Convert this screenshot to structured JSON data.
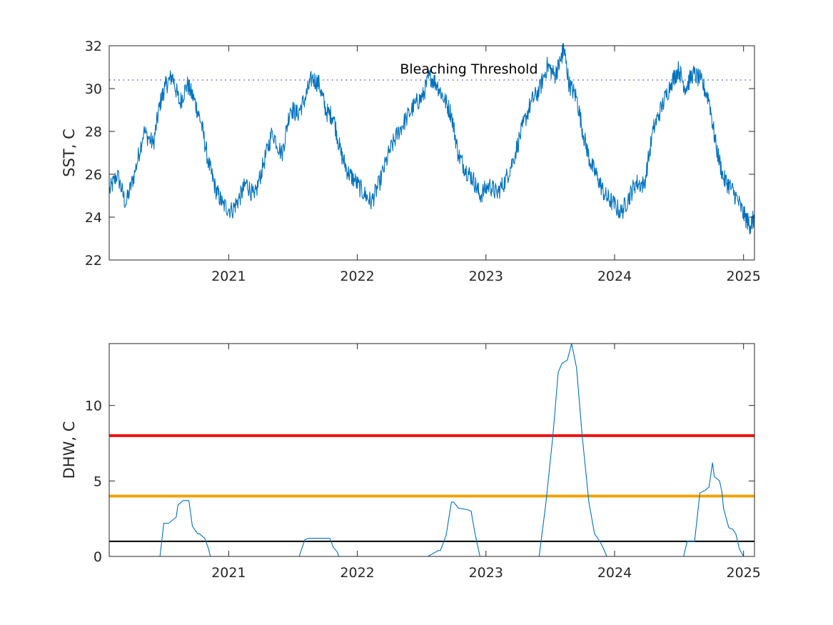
{
  "chart_data": [
    {
      "type": "line",
      "ylabel": "SST, C",
      "xlim": [
        "2020-01-28",
        "2025-02-01"
      ],
      "ylim": [
        22,
        32
      ],
      "yticks": [
        22,
        24,
        26,
        28,
        30,
        32
      ],
      "xticks": [
        "2021",
        "2022",
        "2023",
        "2024",
        "2025"
      ],
      "series": [
        {
          "color": "#0072bd",
          "x": [
            "2020-01-28",
            "2020-02-20",
            "2020-03-15",
            "2020-04-10",
            "2020-05-05",
            "2020-06-01",
            "2020-06-20",
            "2020-07-05",
            "2020-07-25",
            "2020-08-15",
            "2020-09-05",
            "2020-09-25",
            "2020-10-15",
            "2020-11-05",
            "2020-11-25",
            "2020-12-15",
            "2021-01-10",
            "2021-02-01",
            "2021-02-20",
            "2021-03-15",
            "2021-04-10",
            "2021-05-05",
            "2021-06-01",
            "2021-06-25",
            "2021-07-15",
            "2021-08-05",
            "2021-08-25",
            "2021-09-15",
            "2021-10-05",
            "2021-10-25",
            "2021-11-15",
            "2021-12-05",
            "2021-12-25",
            "2022-01-20",
            "2022-02-10",
            "2022-03-05",
            "2022-04-01",
            "2022-04-25",
            "2022-05-20",
            "2022-06-15",
            "2022-07-05",
            "2022-07-25",
            "2022-08-15",
            "2022-09-05",
            "2022-09-25",
            "2022-10-15",
            "2022-11-05",
            "2022-11-25",
            "2022-12-15",
            "2023-01-10",
            "2023-02-01",
            "2023-02-25",
            "2023-03-20",
            "2023-04-15",
            "2023-05-10",
            "2023-06-01",
            "2023-06-25",
            "2023-07-15",
            "2023-08-01",
            "2023-08-10",
            "2023-08-25",
            "2023-09-15",
            "2023-10-05",
            "2023-10-25",
            "2023-11-15",
            "2023-12-05",
            "2023-12-25",
            "2024-01-20",
            "2024-02-10",
            "2024-03-01",
            "2024-03-25",
            "2024-04-20",
            "2024-05-15",
            "2024-06-10",
            "2024-07-01",
            "2024-07-20",
            "2024-08-10",
            "2024-09-01",
            "2024-09-25",
            "2024-10-15",
            "2024-11-05",
            "2024-11-25",
            "2024-12-15",
            "2025-01-05",
            "2025-01-20",
            "2025-02-01"
          ],
          "y": [
            25.2,
            26.0,
            24.6,
            26.1,
            28.0,
            27.4,
            29.3,
            30.1,
            30.6,
            29.3,
            30.2,
            29.5,
            28.4,
            26.5,
            25.3,
            24.6,
            24.3,
            24.9,
            25.6,
            24.9,
            26.5,
            28.0,
            26.9,
            29.1,
            28.8,
            29.5,
            30.5,
            30.2,
            28.9,
            28.7,
            27.0,
            26.1,
            25.7,
            25.1,
            24.7,
            25.6,
            27.0,
            27.9,
            28.6,
            29.3,
            29.6,
            30.6,
            30.2,
            29.5,
            28.8,
            26.9,
            26.2,
            25.8,
            25.0,
            25.5,
            25.1,
            25.7,
            26.7,
            28.2,
            29.4,
            29.9,
            31.1,
            30.6,
            31.3,
            31.9,
            30.2,
            29.6,
            27.8,
            26.5,
            25.8,
            25.0,
            24.7,
            24.2,
            24.9,
            25.6,
            25.5,
            28.1,
            29.2,
            30.3,
            30.9,
            30.0,
            30.7,
            30.4,
            29.5,
            27.3,
            25.8,
            25.4,
            24.8,
            24.0,
            23.6,
            24.0
          ]
        }
      ],
      "annotations": [
        {
          "text": "Bleaching Threshold",
          "x": "2022-05-02",
          "y": 30.7
        }
      ],
      "reference_lines": [
        {
          "y": 30.4,
          "color": "#5b5bdd",
          "style": "dotted"
        }
      ]
    },
    {
      "type": "line",
      "ylabel": "DHW, C",
      "xlim": [
        "2020-01-28",
        "2025-02-01"
      ],
      "ylim": [
        0,
        14.1
      ],
      "yticks": [
        0,
        5,
        10
      ],
      "xticks": [
        "2021",
        "2022",
        "2023",
        "2024",
        "2025"
      ],
      "series": [
        {
          "color": "#0072bd",
          "x": [
            "2020-01-28",
            "2020-06-20",
            "2020-07-01",
            "2020-07-15",
            "2020-08-05",
            "2020-08-10",
            "2020-08-25",
            "2020-09-10",
            "2020-09-20",
            "2020-10-05",
            "2020-10-10",
            "2020-10-25",
            "2020-11-05",
            "2020-11-10",
            "2021-07-20",
            "2021-08-05",
            "2021-08-15",
            "2021-09-15",
            "2021-10-15",
            "2021-10-25",
            "2021-11-05",
            "2021-11-10",
            "2022-07-20",
            "2022-08-20",
            "2022-08-25",
            "2022-09-10",
            "2022-09-25",
            "2022-10-01",
            "2022-10-15",
            "2022-11-10",
            "2022-11-20",
            "2022-12-01",
            "2022-12-15",
            "2023-06-01",
            "2023-06-20",
            "2023-07-10",
            "2023-07-25",
            "2023-08-05",
            "2023-08-20",
            "2023-09-01",
            "2023-09-15",
            "2023-10-01",
            "2023-10-20",
            "2023-11-05",
            "2023-11-20",
            "2023-12-01",
            "2023-12-10",
            "2024-07-15",
            "2024-07-25",
            "2024-08-15",
            "2024-08-30",
            "2024-09-15",
            "2024-09-25",
            "2024-10-05",
            "2024-10-10",
            "2024-10-20",
            "2024-10-25",
            "2024-11-01",
            "2024-11-05",
            "2024-11-20",
            "2024-12-01",
            "2024-12-10",
            "2024-12-20",
            "2025-01-01",
            "2025-01-10",
            "2025-02-01"
          ],
          "y": [
            0,
            0,
            2.2,
            2.2,
            2.6,
            3.4,
            3.7,
            3.7,
            2.0,
            1.5,
            1.5,
            1.2,
            0.5,
            0,
            0,
            1.1,
            1.2,
            1.2,
            1.2,
            0.6,
            0.3,
            0,
            0,
            0.4,
            0.4,
            1.4,
            3.6,
            3.6,
            3.2,
            3.1,
            3.0,
            1.5,
            0,
            0,
            3.5,
            8.0,
            12.2,
            12.8,
            13.0,
            14.1,
            12.5,
            8.0,
            3.6,
            1.5,
            1.0,
            0.5,
            0,
            0,
            1.0,
            1.0,
            4.2,
            4.4,
            4.6,
            6.2,
            5.3,
            5.1,
            5.0,
            4.2,
            3.2,
            1.9,
            1.8,
            1.5,
            0.5,
            0,
            0,
            0
          ]
        }
      ],
      "reference_lines": [
        {
          "y": 8,
          "color": "#ee1111",
          "style": "solid"
        },
        {
          "y": 4,
          "color": "#f0a30a",
          "style": "solid"
        },
        {
          "y": 1,
          "color": "#000000",
          "style": "solid"
        }
      ]
    }
  ]
}
